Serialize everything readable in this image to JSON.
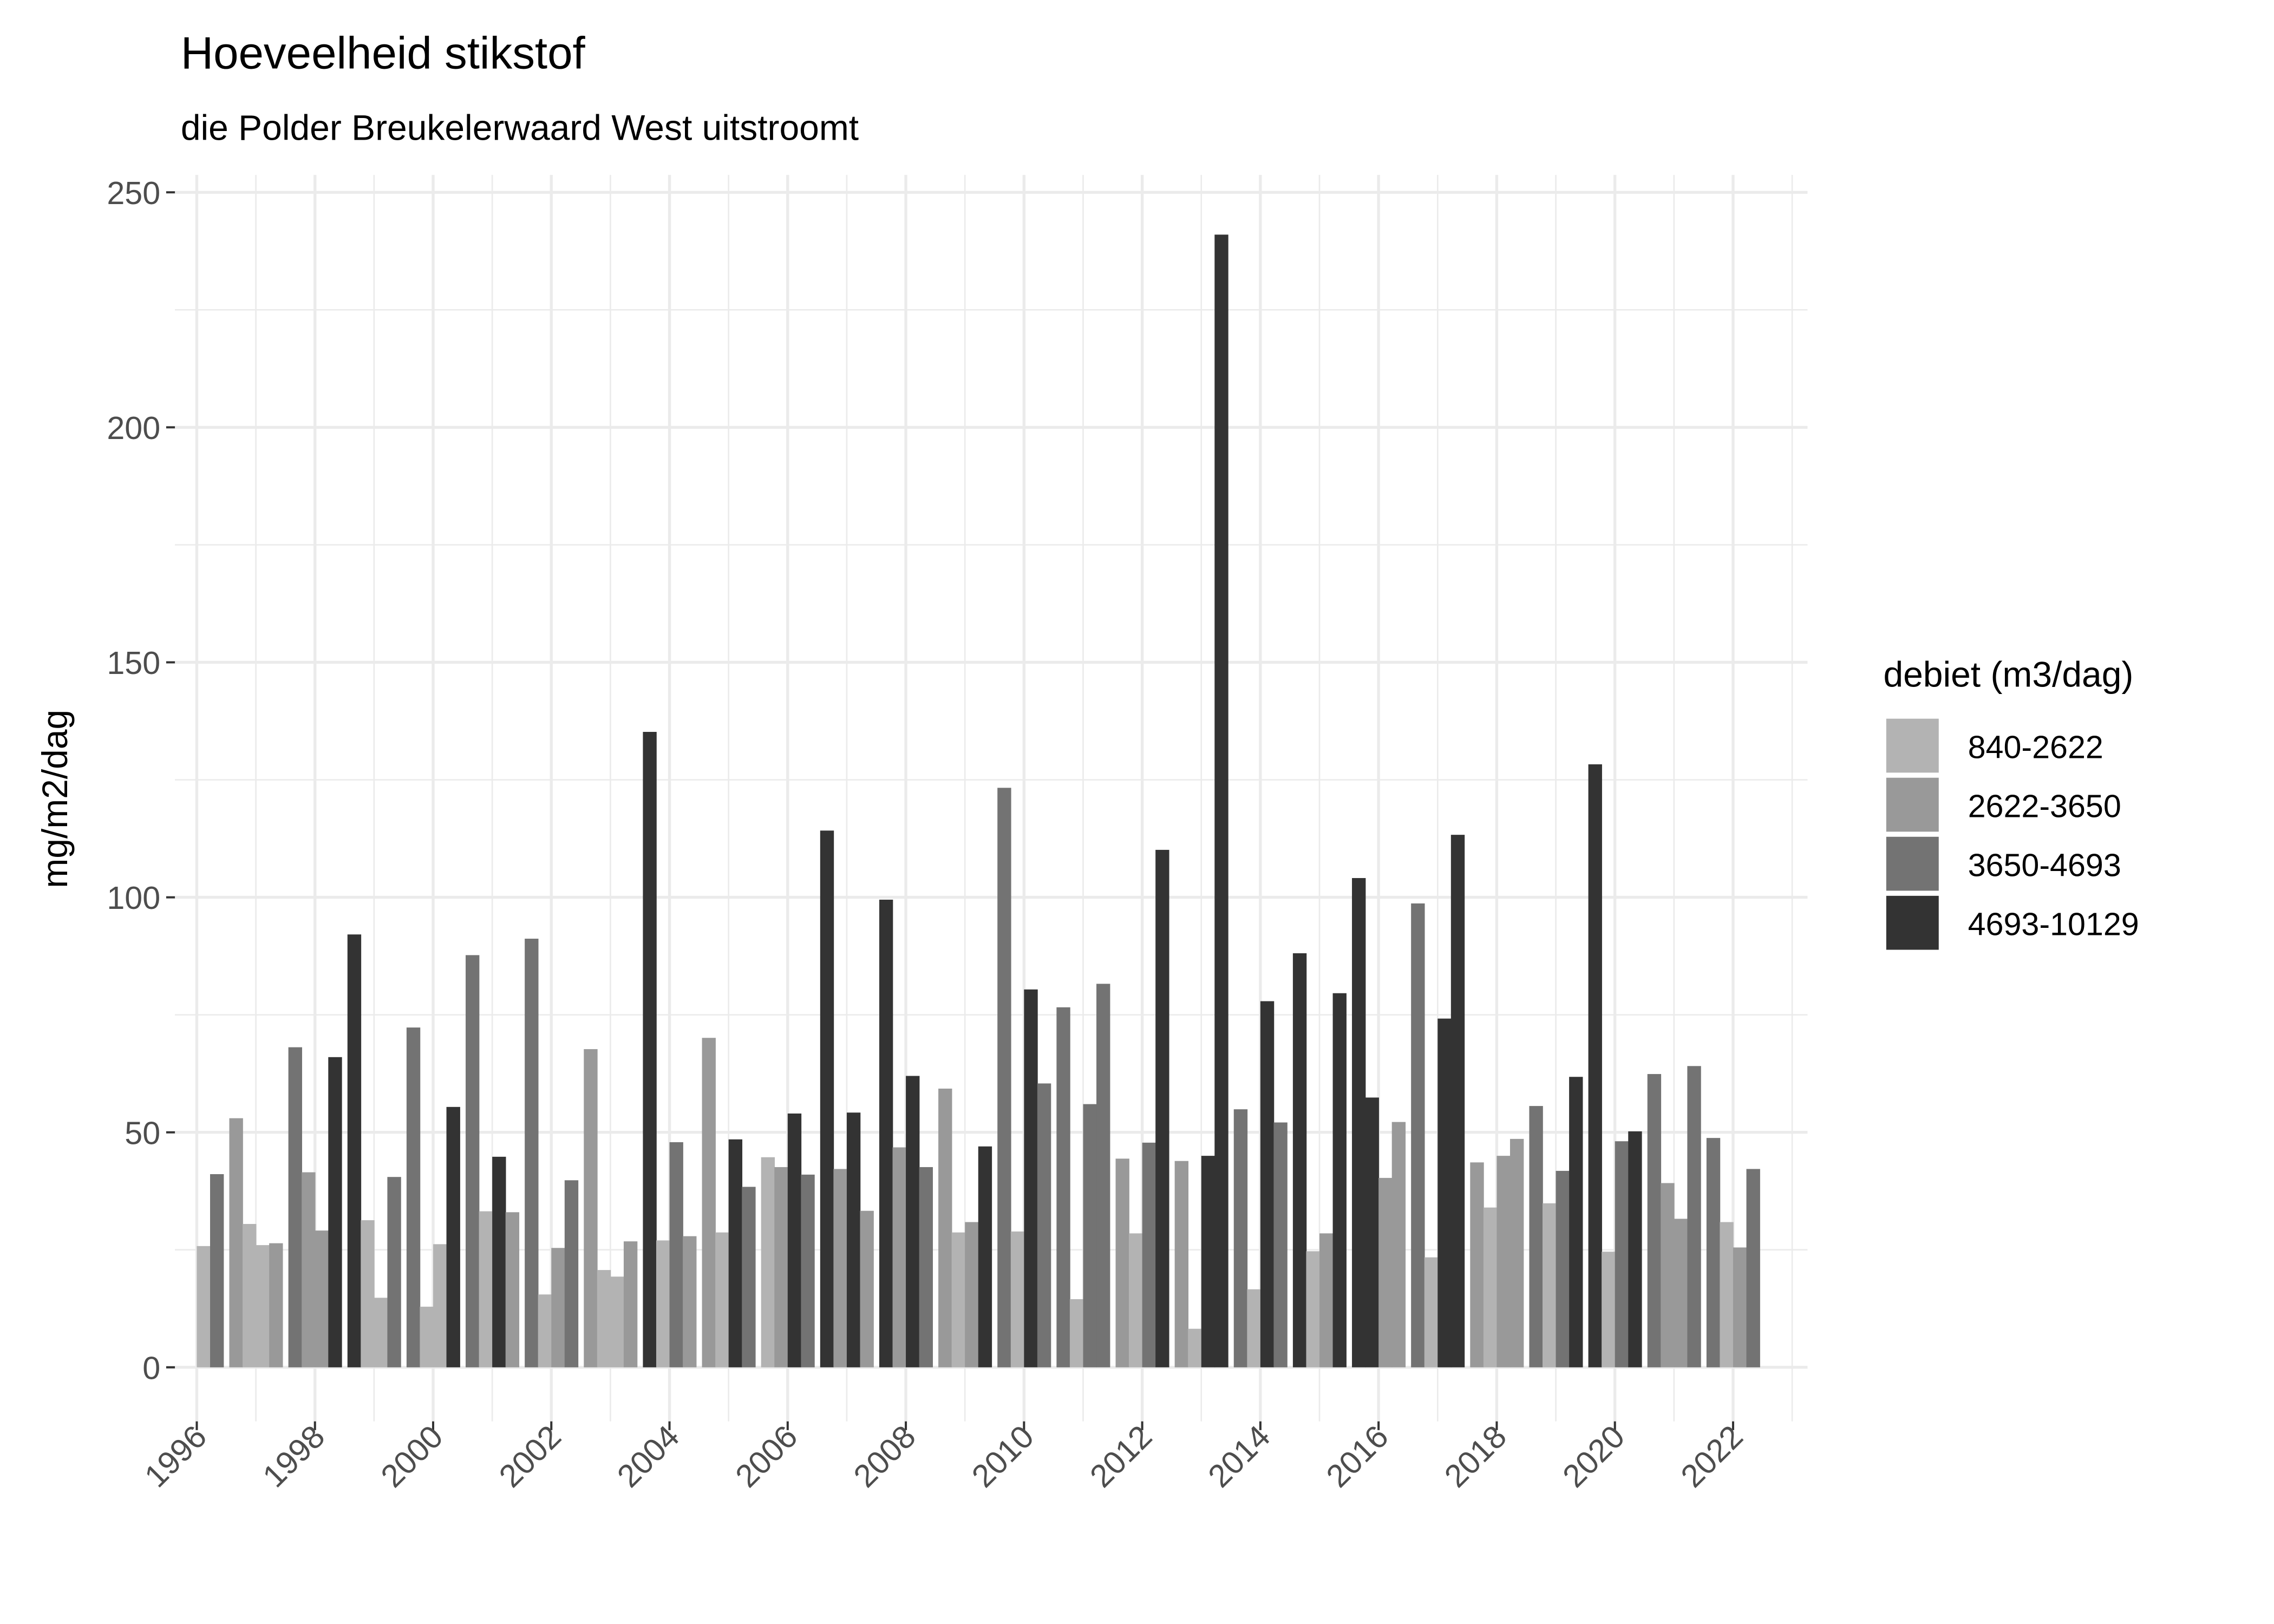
{
  "chart_data": {
    "type": "bar",
    "title": "Hoeveelheid stikstof",
    "subtitle": "die Polder Breukelerwaard West uitstroomt",
    "xlabel": "",
    "ylabel": "mg/m2/dag",
    "ylim": [
      -11.5,
      253.7
    ],
    "xlim": [
      1995.63,
      2023.26
    ],
    "y_ticks": [
      0,
      50,
      100,
      150,
      200,
      250
    ],
    "x_ticks": [
      1996,
      1998,
      2000,
      2002,
      2004,
      2006,
      2008,
      2010,
      2012,
      2014,
      2016,
      2018,
      2020,
      2022
    ],
    "grid": true,
    "legend": {
      "title": "debiet (m3/dag)",
      "placement": "right",
      "entries": [
        {
          "label": "840-2622",
          "color": "#b3b3b3"
        },
        {
          "label": "2622-3650",
          "color": "#999999"
        },
        {
          "label": "3650-4693",
          "color": "#737373"
        },
        {
          "label": "4693-10129",
          "color": "#333333"
        }
      ]
    },
    "bar_positions": "one bar per quarter (Q1-Q4) within each year",
    "data": [
      {
        "year": 1996,
        "values": [
          null,
          null,
          [
            25.8,
            "840-2622"
          ],
          [
            41.1,
            "3650-4693"
          ]
        ]
      },
      {
        "year": 1997,
        "values": [
          [
            53,
            "2622-3650"
          ],
          [
            30.5,
            "840-2622"
          ],
          [
            26,
            "840-2622"
          ],
          [
            26.4,
            "2622-3650"
          ]
        ]
      },
      {
        "year": 1998,
        "values": [
          [
            68.1,
            "3650-4693"
          ],
          [
            41.5,
            "2622-3650"
          ],
          [
            29.1,
            "2622-3650"
          ],
          [
            66,
            "4693-10129"
          ]
        ]
      },
      {
        "year": 1999,
        "values": [
          [
            92.1,
            "4693-10129"
          ],
          [
            31.3,
            "840-2622"
          ],
          [
            14.8,
            "840-2622"
          ],
          [
            40.5,
            "3650-4693"
          ]
        ]
      },
      {
        "year": 2000,
        "values": [
          [
            72.3,
            "3650-4693"
          ],
          [
            12.9,
            "840-2622"
          ],
          [
            26.2,
            "840-2622"
          ],
          [
            55.4,
            "4693-10129"
          ]
        ]
      },
      {
        "year": 2001,
        "values": [
          [
            87.7,
            "3650-4693"
          ],
          [
            33.2,
            "840-2622"
          ],
          [
            44.8,
            "4693-10129"
          ],
          [
            33,
            "2622-3650"
          ]
        ]
      },
      {
        "year": 2002,
        "values": [
          [
            91.2,
            "3650-4693"
          ],
          [
            15.5,
            "840-2622"
          ],
          [
            25.4,
            "2622-3650"
          ],
          [
            39.8,
            "3650-4693"
          ]
        ]
      },
      {
        "year": 2003,
        "values": [
          [
            67.7,
            "2622-3650"
          ],
          [
            20.7,
            "840-2622"
          ],
          [
            19.3,
            "840-2622"
          ],
          [
            26.8,
            "2622-3650"
          ]
        ]
      },
      {
        "year": 2004,
        "values": [
          [
            135.2,
            "4693-10129"
          ],
          [
            27,
            "840-2622"
          ],
          [
            47.9,
            "3650-4693"
          ],
          [
            27.9,
            "2622-3650"
          ]
        ]
      },
      {
        "year": 2005,
        "values": [
          [
            70.1,
            "2622-3650"
          ],
          [
            28.7,
            "840-2622"
          ],
          [
            48.5,
            "4693-10129"
          ],
          [
            38.4,
            "3650-4693"
          ]
        ]
      },
      {
        "year": 2006,
        "values": [
          [
            44.7,
            "840-2622"
          ],
          [
            42.6,
            "2622-3650"
          ],
          [
            54,
            "4693-10129"
          ],
          [
            41,
            "3650-4693"
          ]
        ]
      },
      {
        "year": 2007,
        "values": [
          [
            114.2,
            "4693-10129"
          ],
          [
            42.2,
            "2622-3650"
          ],
          [
            54.2,
            "4693-10129"
          ],
          [
            33.3,
            "2622-3650"
          ]
        ]
      },
      {
        "year": 2008,
        "values": [
          [
            99.5,
            "4693-10129"
          ],
          [
            46.8,
            "2622-3650"
          ],
          [
            62,
            "4693-10129"
          ],
          [
            42.6,
            "3650-4693"
          ]
        ]
      },
      {
        "year": 2009,
        "values": [
          [
            59.3,
            "2622-3650"
          ],
          [
            28.7,
            "840-2622"
          ],
          [
            30.9,
            "2622-3650"
          ],
          [
            47,
            "4693-10129"
          ]
        ]
      },
      {
        "year": 2010,
        "values": [
          [
            123.3,
            "3650-4693"
          ],
          [
            28.9,
            "840-2622"
          ],
          [
            80.4,
            "4693-10129"
          ],
          [
            60.4,
            "3650-4693"
          ]
        ]
      },
      {
        "year": 2011,
        "values": [
          [
            76.6,
            "3650-4693"
          ],
          [
            14.5,
            "840-2622"
          ],
          [
            56,
            "3650-4693"
          ],
          [
            81.6,
            "3650-4693"
          ]
        ]
      },
      {
        "year": 2012,
        "values": [
          [
            44.4,
            "2622-3650"
          ],
          [
            28.5,
            "840-2622"
          ],
          [
            47.8,
            "3650-4693"
          ],
          [
            110.1,
            "4693-10129"
          ]
        ]
      },
      {
        "year": 2013,
        "values": [
          [
            43.9,
            "2622-3650"
          ],
          [
            8.2,
            "840-2622"
          ],
          [
            45,
            "4693-10129"
          ],
          [
            241,
            "4693-10129"
          ]
        ]
      },
      {
        "year": 2014,
        "values": [
          [
            54.9,
            "3650-4693"
          ],
          [
            16.6,
            "840-2622"
          ],
          [
            77.9,
            "4693-10129"
          ],
          [
            52.1,
            "3650-4693"
          ]
        ]
      },
      {
        "year": 2015,
        "values": [
          [
            88.1,
            "4693-10129"
          ],
          [
            24.7,
            "840-2622"
          ],
          [
            28.5,
            "2622-3650"
          ],
          [
            79.6,
            "4693-10129"
          ]
        ]
      },
      {
        "year": 2016,
        "values": [
          [
            104.1,
            "4693-10129"
          ],
          [
            57.4,
            "4693-10129"
          ],
          [
            40.3,
            "2622-3650"
          ],
          [
            52.2,
            "2622-3650"
          ]
        ]
      },
      {
        "year": 2017,
        "values": [
          [
            98.7,
            "3650-4693"
          ],
          [
            23.4,
            "840-2622"
          ],
          [
            74.2,
            "4693-10129"
          ],
          [
            113.3,
            "4693-10129"
          ]
        ]
      },
      {
        "year": 2018,
        "values": [
          [
            43.6,
            "2622-3650"
          ],
          [
            34,
            "840-2622"
          ],
          [
            45,
            "2622-3650"
          ],
          [
            48.6,
            "2622-3650"
          ]
        ]
      },
      {
        "year": 2019,
        "values": [
          [
            55.6,
            "3650-4693"
          ],
          [
            34.9,
            "840-2622"
          ],
          [
            41.8,
            "3650-4693"
          ],
          [
            61.8,
            "4693-10129"
          ]
        ]
      },
      {
        "year": 2020,
        "values": [
          [
            128.3,
            "4693-10129"
          ],
          [
            24.6,
            "840-2622"
          ],
          [
            48.1,
            "3650-4693"
          ],
          [
            50.2,
            "4693-10129"
          ]
        ]
      },
      {
        "year": 2021,
        "values": [
          [
            62.4,
            "3650-4693"
          ],
          [
            39.2,
            "2622-3650"
          ],
          [
            31.6,
            "2622-3650"
          ],
          [
            64.1,
            "3650-4693"
          ]
        ]
      },
      {
        "year": 2022,
        "values": [
          [
            48.8,
            "3650-4693"
          ],
          [
            30.9,
            "840-2622"
          ],
          [
            25.5,
            "2622-3650"
          ],
          [
            42.2,
            "3650-4693"
          ]
        ]
      }
    ]
  }
}
